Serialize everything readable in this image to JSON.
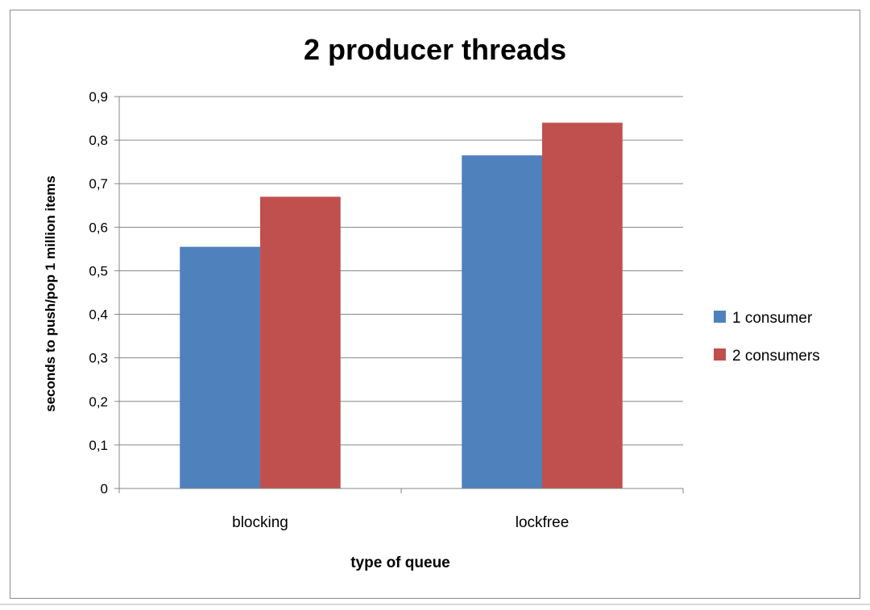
{
  "chart_data": {
    "type": "bar",
    "title": "2 producer threads",
    "xlabel": "type of queue",
    "ylabel": "seconds to push/pop 1 million items",
    "categories": [
      "blocking",
      "lockfree"
    ],
    "series": [
      {
        "name": "1 consumer",
        "values": [
          0.555,
          0.765
        ],
        "color": "#4f81bd"
      },
      {
        "name": "2 consumers",
        "values": [
          0.67,
          0.84
        ],
        "color": "#c0504d"
      }
    ],
    "ylim": [
      0,
      0.9
    ],
    "yticks": [
      "0",
      "0,1",
      "0,2",
      "0,3",
      "0,4",
      "0,5",
      "0,6",
      "0,7",
      "0,8",
      "0,9"
    ],
    "grid": true,
    "legend": "right"
  }
}
